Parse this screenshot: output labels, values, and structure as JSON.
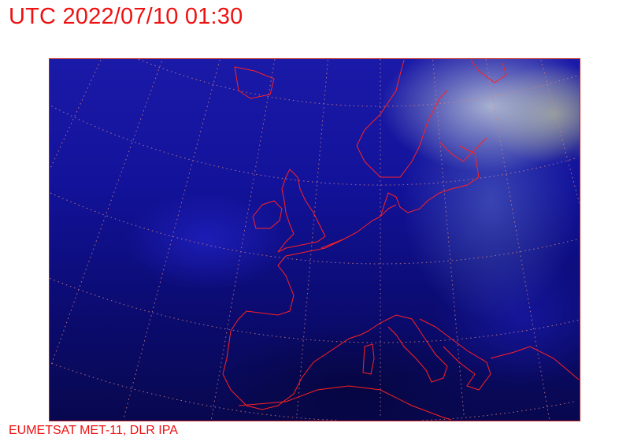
{
  "header": {
    "title": "UTC 2022/07/10 01:30"
  },
  "map": {
    "type": "satellite-image",
    "region": "Europe",
    "coastline_color": "#ff2020",
    "graticule_color": "#d08080"
  },
  "footer": {
    "credit": "EUMETSAT MET-11, DLR IPA"
  }
}
